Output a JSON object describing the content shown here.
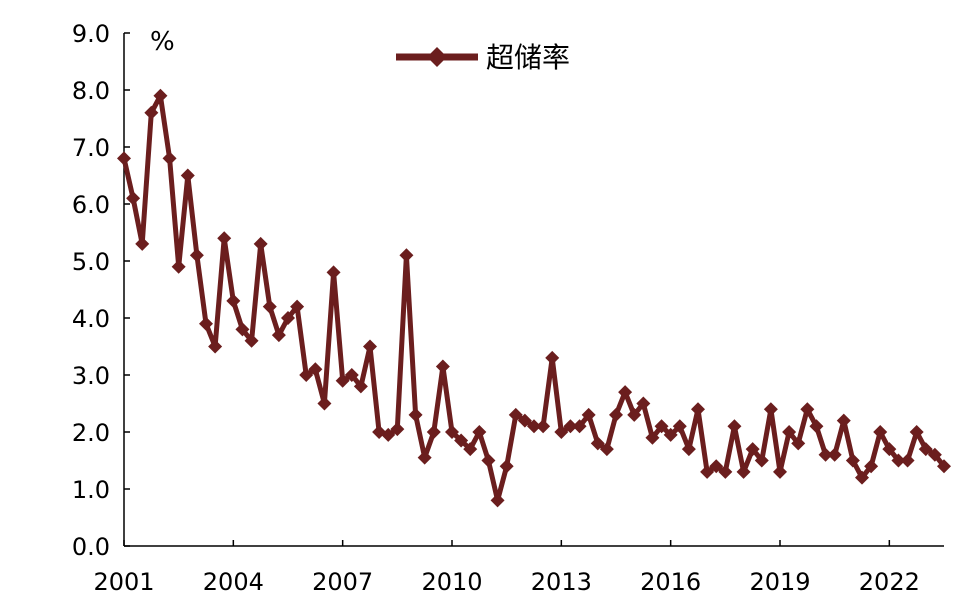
{
  "chart_data": {
    "type": "line",
    "unit_label": "%",
    "x": [
      2001.0,
      2001.25,
      2001.5,
      2001.75,
      2002.0,
      2002.25,
      2002.5,
      2002.75,
      2003.0,
      2003.25,
      2003.5,
      2003.75,
      2004.0,
      2004.25,
      2004.5,
      2004.75,
      2005.0,
      2005.25,
      2005.5,
      2005.75,
      2006.0,
      2006.25,
      2006.5,
      2006.75,
      2007.0,
      2007.25,
      2007.5,
      2007.75,
      2008.0,
      2008.25,
      2008.5,
      2008.75,
      2009.0,
      2009.25,
      2009.5,
      2009.75,
      2010.0,
      2010.25,
      2010.5,
      2010.75,
      2011.0,
      2011.25,
      2011.5,
      2011.75,
      2012.0,
      2012.25,
      2012.5,
      2012.75,
      2013.0,
      2013.25,
      2013.5,
      2013.75,
      2014.0,
      2014.25,
      2014.5,
      2014.75,
      2015.0,
      2015.25,
      2015.5,
      2015.75,
      2016.0,
      2016.25,
      2016.5,
      2016.75,
      2017.0,
      2017.25,
      2017.5,
      2017.75,
      2018.0,
      2018.25,
      2018.5,
      2018.75,
      2019.0,
      2019.25,
      2019.5,
      2019.75,
      2020.0,
      2020.25,
      2020.5,
      2020.75,
      2021.0,
      2021.25,
      2021.5,
      2021.75,
      2022.0,
      2022.25,
      2022.5,
      2022.75,
      2023.0,
      2023.25,
      2023.5
    ],
    "series": [
      {
        "name": "超储率",
        "color": "#6b1e1e",
        "marker": "diamond",
        "values": [
          6.8,
          6.1,
          5.3,
          7.6,
          7.9,
          6.8,
          4.9,
          6.5,
          5.1,
          3.9,
          3.5,
          5.4,
          4.3,
          3.8,
          3.6,
          5.3,
          4.2,
          3.7,
          4.0,
          4.2,
          3.0,
          3.1,
          2.5,
          4.8,
          2.9,
          3.0,
          2.8,
          3.5,
          2.0,
          1.95,
          2.05,
          5.1,
          2.3,
          1.55,
          2.0,
          3.15,
          2.0,
          1.85,
          1.7,
          2.0,
          1.5,
          0.8,
          1.4,
          2.3,
          2.2,
          2.1,
          2.1,
          3.3,
          2.0,
          2.1,
          2.1,
          2.3,
          1.8,
          1.7,
          2.3,
          2.7,
          2.3,
          2.5,
          1.9,
          2.1,
          1.95,
          2.1,
          1.7,
          2.4,
          1.3,
          1.4,
          1.3,
          2.1,
          1.3,
          1.7,
          1.5,
          2.4,
          1.3,
          2.0,
          1.8,
          2.4,
          2.1,
          1.6,
          1.6,
          2.2,
          1.5,
          1.2,
          1.4,
          2.0,
          1.7,
          1.5,
          1.5,
          2.0,
          1.7,
          1.6,
          1.4
        ]
      }
    ],
    "y_ticks": [
      "0.0",
      "1.0",
      "2.0",
      "3.0",
      "4.0",
      "5.0",
      "6.0",
      "7.0",
      "8.0",
      "9.0"
    ],
    "x_ticks": [
      "2001",
      "2004",
      "2007",
      "2010",
      "2013",
      "2016",
      "2019",
      "2022"
    ],
    "xlim": [
      2001,
      2023.5
    ],
    "ylim": [
      0,
      9
    ],
    "legend_position": "top-center",
    "grid": false
  }
}
